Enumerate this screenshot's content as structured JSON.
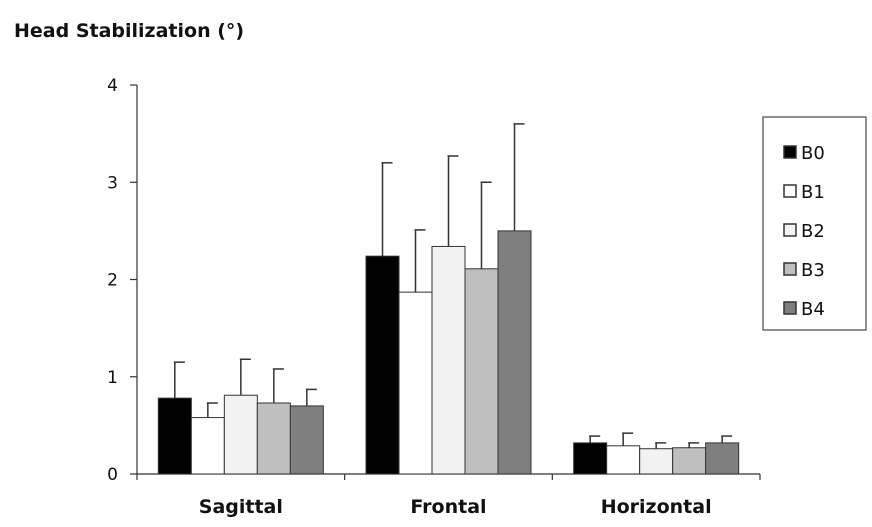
{
  "chart_data": {
    "type": "bar",
    "title": "Head Stabilization (°)",
    "xlabel": "",
    "ylabel": "",
    "ylim": [
      0,
      4
    ],
    "yticks": [
      "0",
      "1",
      "2",
      "3",
      "4"
    ],
    "categories": [
      "Sagittal",
      "Frontal",
      "Horizontal"
    ],
    "grid": false,
    "legend_position": "right",
    "series": [
      {
        "name": "B0",
        "color": "#000000",
        "values": [
          0.78,
          2.24,
          0.32
        ],
        "errors": [
          0.37,
          0.96,
          0.07
        ]
      },
      {
        "name": "B1",
        "color": "#ffffff",
        "values": [
          0.58,
          1.87,
          0.29
        ],
        "errors": [
          0.15,
          0.64,
          0.13
        ]
      },
      {
        "name": "B2",
        "color": "#f2f2f2",
        "values": [
          0.81,
          2.34,
          0.26
        ],
        "errors": [
          0.37,
          0.93,
          0.06
        ]
      },
      {
        "name": "B3",
        "color": "#bfbfbf",
        "values": [
          0.73,
          2.11,
          0.27
        ],
        "errors": [
          0.35,
          0.89,
          0.05
        ]
      },
      {
        "name": "B4",
        "color": "#7f7f7f",
        "values": [
          0.7,
          2.5,
          0.32
        ],
        "errors": [
          0.17,
          1.1,
          0.07
        ]
      }
    ]
  }
}
